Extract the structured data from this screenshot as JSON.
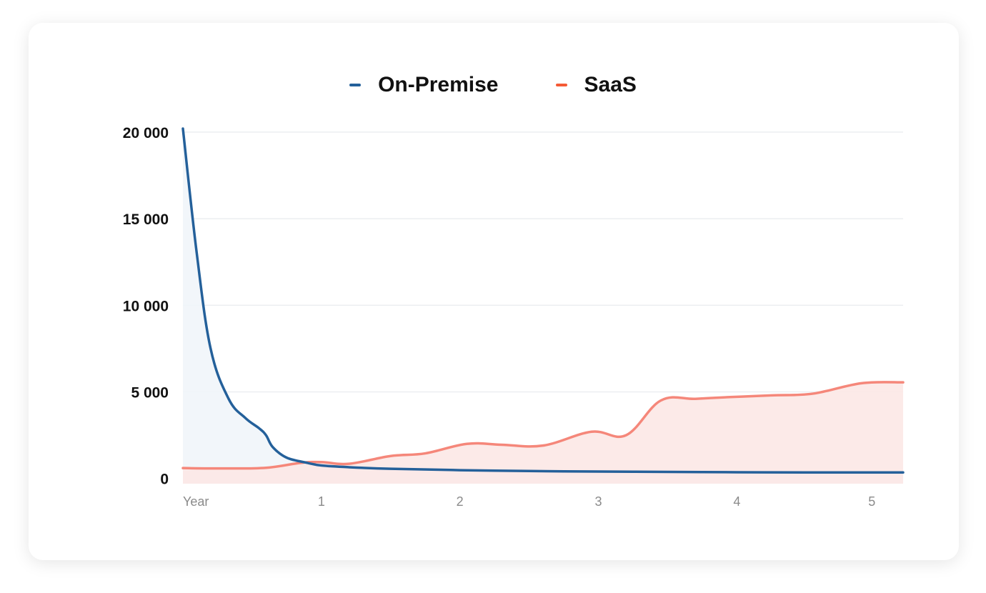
{
  "chart_data": {
    "type": "area",
    "legend_position": "top-center",
    "grid": true,
    "x_axis_label": "Year",
    "x_ticks": [
      1,
      2,
      3,
      4,
      5
    ],
    "y_ticks": [
      {
        "value": 0,
        "label": "0"
      },
      {
        "value": 5000,
        "label": "5 000"
      },
      {
        "value": 10000,
        "label": "10 000"
      },
      {
        "value": 15000,
        "label": "15 000"
      },
      {
        "value": 20000,
        "label": "20 000"
      }
    ],
    "xlim": [
      0,
      5.2
    ],
    "ylim": [
      -300,
      20200
    ],
    "series": [
      {
        "name": "On-Premise",
        "color": "#24609a",
        "fill": "#f1f5f9",
        "points": [
          [
            0,
            20200
          ],
          [
            0.1,
            13000
          ],
          [
            0.2,
            7500
          ],
          [
            0.33,
            4600
          ],
          [
            0.45,
            3500
          ],
          [
            0.55,
            2900
          ],
          [
            0.6,
            2500
          ],
          [
            0.65,
            1800
          ],
          [
            0.75,
            1200
          ],
          [
            0.9,
            900
          ],
          [
            1.0,
            750
          ],
          [
            1.2,
            650
          ],
          [
            1.5,
            560
          ],
          [
            2.0,
            480
          ],
          [
            2.5,
            430
          ],
          [
            3.0,
            400
          ],
          [
            3.5,
            380
          ],
          [
            4.0,
            360
          ],
          [
            4.5,
            350
          ],
          [
            5.2,
            350
          ]
        ]
      },
      {
        "name": "SaaS",
        "color": "#f5877a",
        "fill": "#fce8e6",
        "points": [
          [
            0,
            600
          ],
          [
            0.3,
            580
          ],
          [
            0.6,
            620
          ],
          [
            0.85,
            900
          ],
          [
            1.0,
            950
          ],
          [
            1.2,
            850
          ],
          [
            1.5,
            1300
          ],
          [
            1.75,
            1450
          ],
          [
            2.05,
            2000
          ],
          [
            2.3,
            1950
          ],
          [
            2.6,
            1900
          ],
          [
            2.95,
            2700
          ],
          [
            3.2,
            2500
          ],
          [
            3.45,
            4500
          ],
          [
            3.7,
            4600
          ],
          [
            3.95,
            4700
          ],
          [
            4.25,
            4800
          ],
          [
            4.55,
            4900
          ],
          [
            4.9,
            5500
          ],
          [
            5.2,
            5550
          ]
        ]
      }
    ]
  }
}
